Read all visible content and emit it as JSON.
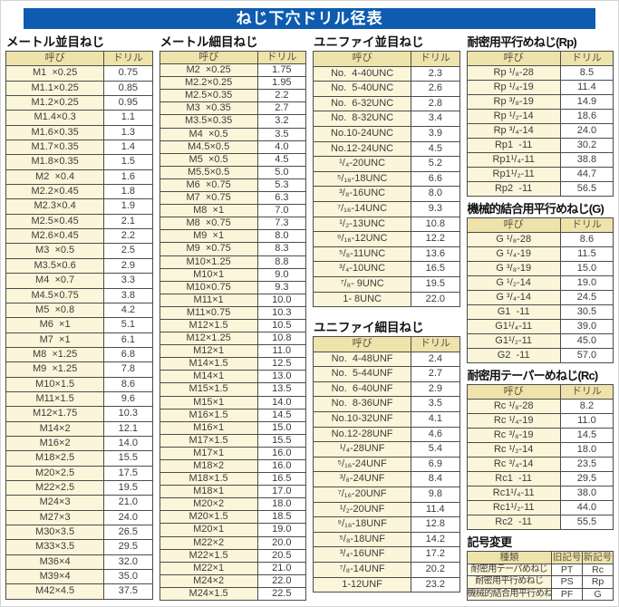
{
  "title": "ねじ下穴ドリル径表",
  "colors": {
    "banner": "#0d5cb0",
    "table_header_bg": "#eee3ab",
    "name_cell_bg": "#fbf5d9"
  },
  "tables": {
    "metric_coarse": {
      "title": "メートル並目ねじ",
      "headers": [
        "呼び",
        "ドリル"
      ],
      "rows": [
        [
          "M1  ×0.25",
          "0.75"
        ],
        [
          "M1.1×0.25",
          "0.85"
        ],
        [
          "M1.2×0.25",
          "0.95"
        ],
        [
          "M1.4×0.3",
          "1.1"
        ],
        [
          "M1.6×0.35",
          "1.3"
        ],
        [
          "M1.7×0.35",
          "1.4"
        ],
        [
          "M1.8×0.35",
          "1.5"
        ],
        [
          "M2  ×0.4",
          "1.6"
        ],
        [
          "M2.2×0.45",
          "1.8"
        ],
        [
          "M2.3×0.4",
          "1.9"
        ],
        [
          "M2.5×0.45",
          "2.1"
        ],
        [
          "M2.6×0.45",
          "2.2"
        ],
        [
          "M3  ×0.5",
          "2.5"
        ],
        [
          "M3.5×0.6",
          "2.9"
        ],
        [
          "M4  ×0.7",
          "3.3"
        ],
        [
          "M4.5×0.75",
          "3.8"
        ],
        [
          "M5  ×0.8",
          "4.2"
        ],
        [
          "M6  ×1",
          "5.1"
        ],
        [
          "M7  ×1",
          "6.1"
        ],
        [
          "M8  ×1.25",
          "6.8"
        ],
        [
          "M9  ×1.25",
          "7.8"
        ],
        [
          "M10×1.5",
          "8.6"
        ],
        [
          "M11×1.5",
          "9.6"
        ],
        [
          "M12×1.75",
          "10.3"
        ],
        [
          "M14×2",
          "12.1"
        ],
        [
          "M16×2",
          "14.0"
        ],
        [
          "M18×2.5",
          "15.5"
        ],
        [
          "M20×2.5",
          "17.5"
        ],
        [
          "M22×2.5",
          "19.5"
        ],
        [
          "M24×3",
          "21.0"
        ],
        [
          "M27×3",
          "24.0"
        ],
        [
          "M30×3.5",
          "26.5"
        ],
        [
          "M33×3.5",
          "29.5"
        ],
        [
          "M36×4",
          "32.0"
        ],
        [
          "M39×4",
          "35.0"
        ],
        [
          "M42×4.5",
          "37.5"
        ]
      ]
    },
    "metric_fine": {
      "title": "メートル細目ねじ",
      "headers": [
        "呼び",
        "ドリル"
      ],
      "rows": [
        [
          "M2  ×0.25",
          "1.75"
        ],
        [
          "M2.2×0.25",
          "1.95"
        ],
        [
          "M2.5×0.35",
          "2.2"
        ],
        [
          "M3  ×0.35",
          "2.7"
        ],
        [
          "M3.5×0.35",
          "3.2"
        ],
        [
          "M4  ×0.5",
          "3.5"
        ],
        [
          "M4.5×0.5",
          "4.0"
        ],
        [
          "M5  ×0.5",
          "4.5"
        ],
        [
          "M5.5×0.5",
          "5.0"
        ],
        [
          "M6  ×0.75",
          "5.3"
        ],
        [
          "M7  ×0.75",
          "6.3"
        ],
        [
          "M8  ×1",
          "7.0"
        ],
        [
          "M8  ×0.75",
          "7.3"
        ],
        [
          "M9  ×1",
          "8.0"
        ],
        [
          "M9  ×0.75",
          "8.3"
        ],
        [
          "M10×1.25",
          "8.8"
        ],
        [
          "M10×1",
          "9.0"
        ],
        [
          "M10×0.75",
          "9.3"
        ],
        [
          "M11×1",
          "10.0"
        ],
        [
          "M11×0.75",
          "10.3"
        ],
        [
          "M12×1.5",
          "10.5"
        ],
        [
          "M12×1.25",
          "10.8"
        ],
        [
          "M12×1",
          "11.0"
        ],
        [
          "M14×1.5",
          "12.5"
        ],
        [
          "M14×1",
          "13.0"
        ],
        [
          "M15×1.5",
          "13.5"
        ],
        [
          "M15×1",
          "14.0"
        ],
        [
          "M16×1.5",
          "14.5"
        ],
        [
          "M16×1",
          "15.0"
        ],
        [
          "M17×1.5",
          "15.5"
        ],
        [
          "M17×1",
          "16.0"
        ],
        [
          "M18×2",
          "16.0"
        ],
        [
          "M18×1.5",
          "16.5"
        ],
        [
          "M18×1",
          "17.0"
        ],
        [
          "M20×2",
          "18.0"
        ],
        [
          "M20×1.5",
          "18.5"
        ],
        [
          "M20×1",
          "19.0"
        ],
        [
          "M22×2",
          "20.0"
        ],
        [
          "M22×1.5",
          "20.5"
        ],
        [
          "M22×1",
          "21.0"
        ],
        [
          "M24×2",
          "22.0"
        ],
        [
          "M24×1.5",
          "22.5"
        ]
      ]
    },
    "unified_coarse": {
      "title": "ユニファイ並目ねじ",
      "headers": [
        "呼び",
        "ドリル"
      ],
      "rows": [
        [
          "No.  4-40UNC",
          "2.3"
        ],
        [
          "No.  5-40UNC",
          "2.6"
        ],
        [
          "No.  6-32UNC",
          "2.8"
        ],
        [
          "No.  8-32UNC",
          "3.4"
        ],
        [
          "No.10-24UNC",
          "3.9"
        ],
        [
          "No.12-24UNC",
          "4.5"
        ],
        [
          "¹/₄-20UNC",
          "5.2"
        ],
        [
          "⁵/₁₆-18UNC",
          "6.6"
        ],
        [
          "³/₈-16UNC",
          "8.0"
        ],
        [
          "⁷/₁₆-14UNC",
          "9.3"
        ],
        [
          "¹/₂-13UNC",
          "10.8"
        ],
        [
          "⁹/₁₆-12UNC",
          "12.2"
        ],
        [
          "⁵/₈-11UNC",
          "13.6"
        ],
        [
          "³/₄-10UNC",
          "16.5"
        ],
        [
          "⁷/₈- 9UNC",
          "19.5"
        ],
        [
          "1- 8UNC",
          "22.0"
        ]
      ]
    },
    "unified_fine": {
      "title": "ユニファイ細目ねじ",
      "headers": [
        "呼び",
        "ドリル"
      ],
      "rows": [
        [
          "No.  4-48UNF",
          "2.4"
        ],
        [
          "No.  5-44UNF",
          "2.7"
        ],
        [
          "No.  6-40UNF",
          "2.9"
        ],
        [
          "No.  8-36UNF",
          "3.5"
        ],
        [
          "No.10-32UNF",
          "4.1"
        ],
        [
          "No.12-28UNF",
          "4.6"
        ],
        [
          "¹/₄-28UNF",
          "5.4"
        ],
        [
          "⁵/₁₆-24UNF",
          "6.9"
        ],
        [
          "³/₈-24UNF",
          "8.4"
        ],
        [
          "⁷/₁₆-20UNF",
          "9.8"
        ],
        [
          "¹/₂-20UNF",
          "11.4"
        ],
        [
          "⁹/₁₆-18UNF",
          "12.8"
        ],
        [
          "⁵/₈-18UNF",
          "14.2"
        ],
        [
          "³/₄-16UNF",
          "17.2"
        ],
        [
          "⁷/₈-14UNF",
          "20.2"
        ],
        [
          "1-12UNF",
          "23.2"
        ]
      ]
    },
    "rp": {
      "title": "耐密用平行めねじ(Rp)",
      "headers": [
        "呼び",
        "ドリル"
      ],
      "rows": [
        [
          "Rp ¹/₈-28",
          "8.5"
        ],
        [
          "Rp ¹/₄-19",
          "11.4"
        ],
        [
          "Rp ³/₈-19",
          "14.9"
        ],
        [
          "Rp ¹/₂-14",
          "18.6"
        ],
        [
          "Rp ³/₄-14",
          "24.0"
        ],
        [
          "Rp1  -11",
          "30.2"
        ],
        [
          "Rp1¹/₄-11",
          "38.8"
        ],
        [
          "Rp1¹/₂-11",
          "44.7"
        ],
        [
          "Rp2  -11",
          "56.5"
        ]
      ]
    },
    "g": {
      "title": "機械的結合用平行めねじ(G)",
      "headers": [
        "呼び",
        "ドリル"
      ],
      "rows": [
        [
          "G ¹/₈-28",
          "8.6"
        ],
        [
          "G ¹/₄-19",
          "11.5"
        ],
        [
          "G ³/₈-19",
          "15.0"
        ],
        [
          "G ¹/₂-14",
          "19.0"
        ],
        [
          "G ³/₄-14",
          "24.5"
        ],
        [
          "G1  -11",
          "30.5"
        ],
        [
          "G1¹/₄-11",
          "39.0"
        ],
        [
          "G1¹/₂-11",
          "45.0"
        ],
        [
          "G2  -11",
          "57.0"
        ]
      ]
    },
    "rc": {
      "title": "耐密用テーパーめねじ(Rc)",
      "headers": [
        "呼び",
        "ドリル"
      ],
      "rows": [
        [
          "Rc ¹/₈-28",
          "8.2"
        ],
        [
          "Rc ¹/₄-19",
          "11.0"
        ],
        [
          "Rc ³/₈-19",
          "14.5"
        ],
        [
          "Rc ¹/₂-14",
          "18.0"
        ],
        [
          "Rc ³/₄-14",
          "23.5"
        ],
        [
          "Rc1  -11",
          "29.5"
        ],
        [
          "Rc1¹/₄-11",
          "38.0"
        ],
        [
          "Rc1¹/₂-11",
          "44.0"
        ],
        [
          "Rc2  -11",
          "55.5"
        ]
      ]
    },
    "symbol_change": {
      "title": "記号変更",
      "headers": [
        "種類",
        "旧記号",
        "新記号"
      ],
      "rows": [
        [
          "耐密用テーパめねじ",
          "PT",
          "Rc"
        ],
        [
          "耐密用平行めねじ",
          "PS",
          "Rp"
        ],
        [
          "機械的結合用平行めねじ",
          "PF",
          "G"
        ]
      ]
    }
  }
}
